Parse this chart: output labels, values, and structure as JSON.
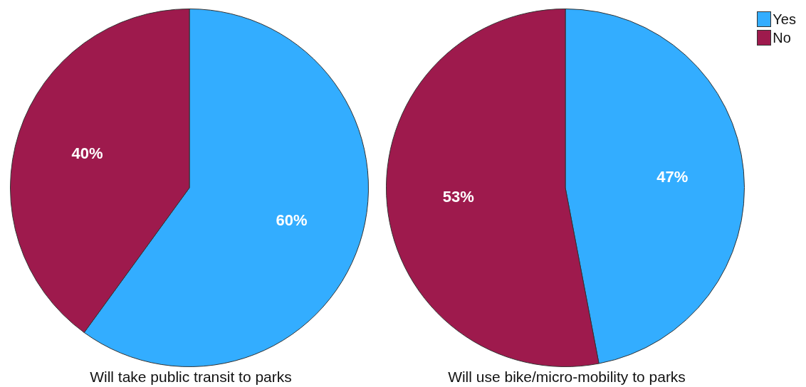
{
  "chart_data": [
    {
      "type": "pie",
      "title": "Will take public transit to parks",
      "categories": [
        null,
        null
      ],
      "values": [
        60,
        40
      ],
      "value_labels": [
        "60%",
        "40%"
      ],
      "colors": [
        "#33adff",
        "#9e1a4d"
      ],
      "legend": false
    },
    {
      "type": "pie",
      "title": "Will use bike/micro-mobility to parks",
      "categories": [
        "Yes",
        "No"
      ],
      "values": [
        47,
        53
      ],
      "value_labels": [
        "47%",
        "53%"
      ],
      "colors": [
        "#33adff",
        "#9e1a4d"
      ],
      "legend": "top right"
    }
  ]
}
